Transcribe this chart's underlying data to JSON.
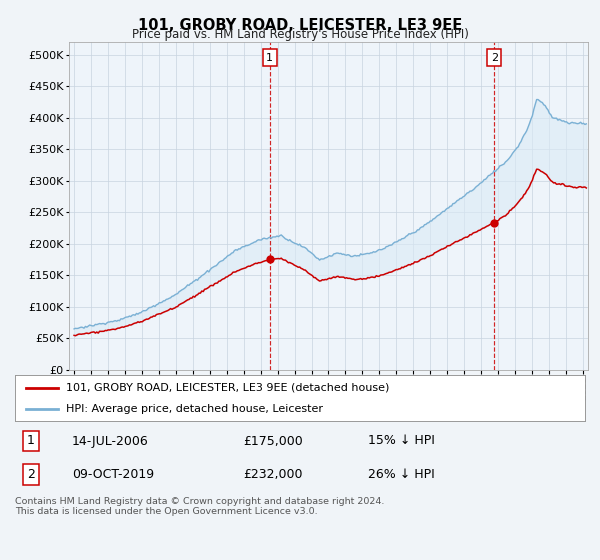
{
  "title": "101, GROBY ROAD, LEICESTER, LE3 9EE",
  "subtitle": "Price paid vs. HM Land Registry's House Price Index (HPI)",
  "yticks": [
    0,
    50000,
    100000,
    150000,
    200000,
    250000,
    300000,
    350000,
    400000,
    450000,
    500000
  ],
  "ylim": [
    0,
    520000
  ],
  "xlim_start": 1994.7,
  "xlim_end": 2025.3,
  "hpi_color": "#7ab0d4",
  "hpi_fill_color": "#daeaf5",
  "price_color": "#cc0000",
  "marker1_date": 2006.54,
  "marker1_price": 175000,
  "marker1_label": "1",
  "marker2_date": 2019.77,
  "marker2_price": 232000,
  "marker2_label": "2",
  "legend_line1": "101, GROBY ROAD, LEICESTER, LE3 9EE (detached house)",
  "legend_line2": "HPI: Average price, detached house, Leicester",
  "table_row1": [
    "1",
    "14-JUL-2006",
    "£175,000",
    "15% ↓ HPI"
  ],
  "table_row2": [
    "2",
    "09-OCT-2019",
    "£232,000",
    "26% ↓ HPI"
  ],
  "footnote": "Contains HM Land Registry data © Crown copyright and database right 2024.\nThis data is licensed under the Open Government Licence v3.0.",
  "background_color": "#f0f4f8",
  "plot_bg_color": "#eef4fa",
  "grid_color": "#c8d4e0"
}
